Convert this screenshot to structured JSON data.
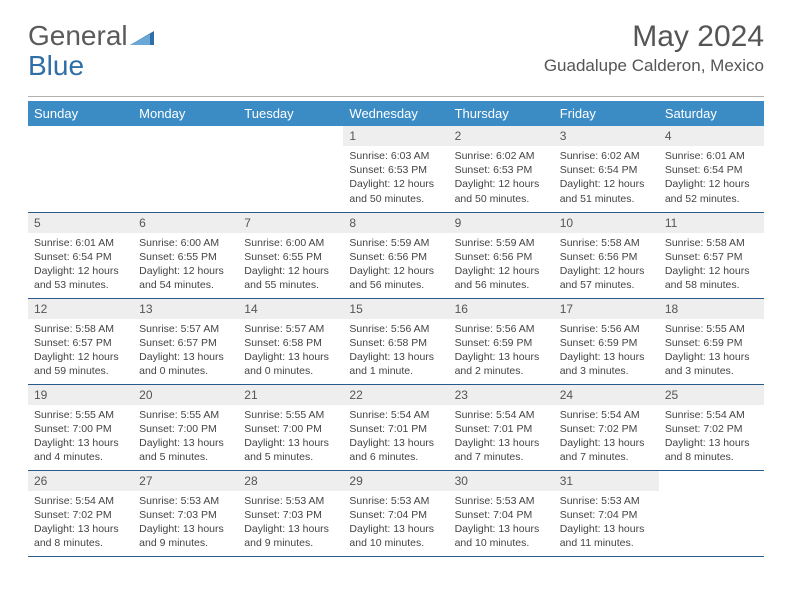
{
  "logo": {
    "text_gray": "General",
    "text_blue": "Blue"
  },
  "header": {
    "month_title": "May 2024",
    "location": "Guadalupe Calderon, Mexico"
  },
  "colors": {
    "header_bg": "#3b8bc5",
    "header_text": "#ffffff",
    "daynum_bg": "#eeeeee",
    "row_border": "#2a5a8a",
    "body_text": "#444444",
    "title_text": "#555555"
  },
  "weekdays": [
    "Sunday",
    "Monday",
    "Tuesday",
    "Wednesday",
    "Thursday",
    "Friday",
    "Saturday"
  ],
  "weeks": [
    [
      {
        "empty": true
      },
      {
        "empty": true
      },
      {
        "empty": true
      },
      {
        "day": "1",
        "sunrise": "6:03 AM",
        "sunset": "6:53 PM",
        "daylight": "12 hours and 50 minutes."
      },
      {
        "day": "2",
        "sunrise": "6:02 AM",
        "sunset": "6:53 PM",
        "daylight": "12 hours and 50 minutes."
      },
      {
        "day": "3",
        "sunrise": "6:02 AM",
        "sunset": "6:54 PM",
        "daylight": "12 hours and 51 minutes."
      },
      {
        "day": "4",
        "sunrise": "6:01 AM",
        "sunset": "6:54 PM",
        "daylight": "12 hours and 52 minutes."
      }
    ],
    [
      {
        "day": "5",
        "sunrise": "6:01 AM",
        "sunset": "6:54 PM",
        "daylight": "12 hours and 53 minutes."
      },
      {
        "day": "6",
        "sunrise": "6:00 AM",
        "sunset": "6:55 PM",
        "daylight": "12 hours and 54 minutes."
      },
      {
        "day": "7",
        "sunrise": "6:00 AM",
        "sunset": "6:55 PM",
        "daylight": "12 hours and 55 minutes."
      },
      {
        "day": "8",
        "sunrise": "5:59 AM",
        "sunset": "6:56 PM",
        "daylight": "12 hours and 56 minutes."
      },
      {
        "day": "9",
        "sunrise": "5:59 AM",
        "sunset": "6:56 PM",
        "daylight": "12 hours and 56 minutes."
      },
      {
        "day": "10",
        "sunrise": "5:58 AM",
        "sunset": "6:56 PM",
        "daylight": "12 hours and 57 minutes."
      },
      {
        "day": "11",
        "sunrise": "5:58 AM",
        "sunset": "6:57 PM",
        "daylight": "12 hours and 58 minutes."
      }
    ],
    [
      {
        "day": "12",
        "sunrise": "5:58 AM",
        "sunset": "6:57 PM",
        "daylight": "12 hours and 59 minutes."
      },
      {
        "day": "13",
        "sunrise": "5:57 AM",
        "sunset": "6:57 PM",
        "daylight": "13 hours and 0 minutes."
      },
      {
        "day": "14",
        "sunrise": "5:57 AM",
        "sunset": "6:58 PM",
        "daylight": "13 hours and 0 minutes."
      },
      {
        "day": "15",
        "sunrise": "5:56 AM",
        "sunset": "6:58 PM",
        "daylight": "13 hours and 1 minute."
      },
      {
        "day": "16",
        "sunrise": "5:56 AM",
        "sunset": "6:59 PM",
        "daylight": "13 hours and 2 minutes."
      },
      {
        "day": "17",
        "sunrise": "5:56 AM",
        "sunset": "6:59 PM",
        "daylight": "13 hours and 3 minutes."
      },
      {
        "day": "18",
        "sunrise": "5:55 AM",
        "sunset": "6:59 PM",
        "daylight": "13 hours and 3 minutes."
      }
    ],
    [
      {
        "day": "19",
        "sunrise": "5:55 AM",
        "sunset": "7:00 PM",
        "daylight": "13 hours and 4 minutes."
      },
      {
        "day": "20",
        "sunrise": "5:55 AM",
        "sunset": "7:00 PM",
        "daylight": "13 hours and 5 minutes."
      },
      {
        "day": "21",
        "sunrise": "5:55 AM",
        "sunset": "7:00 PM",
        "daylight": "13 hours and 5 minutes."
      },
      {
        "day": "22",
        "sunrise": "5:54 AM",
        "sunset": "7:01 PM",
        "daylight": "13 hours and 6 minutes."
      },
      {
        "day": "23",
        "sunrise": "5:54 AM",
        "sunset": "7:01 PM",
        "daylight": "13 hours and 7 minutes."
      },
      {
        "day": "24",
        "sunrise": "5:54 AM",
        "sunset": "7:02 PM",
        "daylight": "13 hours and 7 minutes."
      },
      {
        "day": "25",
        "sunrise": "5:54 AM",
        "sunset": "7:02 PM",
        "daylight": "13 hours and 8 minutes."
      }
    ],
    [
      {
        "day": "26",
        "sunrise": "5:54 AM",
        "sunset": "7:02 PM",
        "daylight": "13 hours and 8 minutes."
      },
      {
        "day": "27",
        "sunrise": "5:53 AM",
        "sunset": "7:03 PM",
        "daylight": "13 hours and 9 minutes."
      },
      {
        "day": "28",
        "sunrise": "5:53 AM",
        "sunset": "7:03 PM",
        "daylight": "13 hours and 9 minutes."
      },
      {
        "day": "29",
        "sunrise": "5:53 AM",
        "sunset": "7:04 PM",
        "daylight": "13 hours and 10 minutes."
      },
      {
        "day": "30",
        "sunrise": "5:53 AM",
        "sunset": "7:04 PM",
        "daylight": "13 hours and 10 minutes."
      },
      {
        "day": "31",
        "sunrise": "5:53 AM",
        "sunset": "7:04 PM",
        "daylight": "13 hours and 11 minutes."
      },
      {
        "empty": true
      }
    ]
  ],
  "labels": {
    "sunrise": "Sunrise:",
    "sunset": "Sunset:",
    "daylight": "Daylight:"
  }
}
